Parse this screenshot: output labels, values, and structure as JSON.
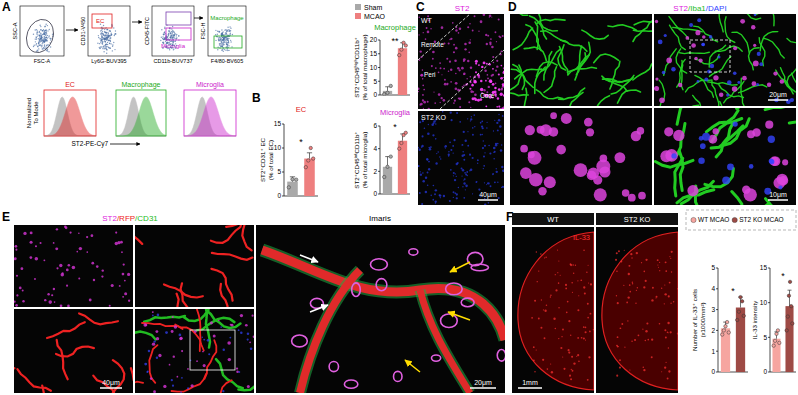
{
  "chart_data": [
    {
      "type": "bar",
      "title": "EC",
      "y_label": [
        "ST2⁺CD31⁺ EC",
        "(% of total EC)"
      ],
      "categories": [
        null
      ],
      "ylim": [
        0,
        15
      ],
      "yticks": [
        0,
        5,
        10,
        15
      ],
      "annotation": "*",
      "series": [
        {
          "color": "#a9a9a9",
          "values": [
            3.0
          ],
          "errors": [
            1.0
          ],
          "points": [
            1.8,
            3.5,
            3.4
          ]
        },
        {
          "color": "#ee7f7f",
          "values": [
            7.8
          ],
          "errors": [
            1.2
          ],
          "points": [
            6.0,
            7.4,
            10.0,
            7.8
          ]
        }
      ]
    },
    {
      "type": "bar",
      "title": "Macrophage",
      "y_label": [
        "ST2⁺CD45ʰⁱᵍʰCD11b⁺",
        "(% of total macrophage)"
      ],
      "categories": [
        null
      ],
      "ylim": [
        0,
        20
      ],
      "yticks": [
        0,
        5,
        10,
        15,
        20
      ],
      "annotation": "**",
      "legend": "top",
      "series": [
        {
          "name": "Sham",
          "color": "#a9a9a9",
          "values": [
            1.5
          ],
          "errors": [
            1.5
          ],
          "points": [
            0.3,
            0.8,
            3.3
          ]
        },
        {
          "name": "MCAO",
          "color": "#ee7f7f",
          "values": [
            17.0
          ],
          "errors": [
            2.0
          ],
          "points": [
            14.5,
            16.5,
            19.0,
            18.0
          ]
        }
      ]
    },
    {
      "type": "bar",
      "title": "Microglia",
      "y_label": [
        "ST2⁺CD45ⁱⁿᵗCD11b⁺",
        "(% of total microglia)"
      ],
      "categories": [
        null
      ],
      "ylim": [
        0,
        6
      ],
      "yticks": [
        0,
        2,
        4,
        6
      ],
      "annotation": "*",
      "series": [
        {
          "color": "#a9a9a9",
          "values": [
            2.4
          ],
          "errors": [
            0.9
          ],
          "points": [
            1.5,
            2.4,
            3.3
          ]
        },
        {
          "color": "#ee7f7f",
          "values": [
            4.7
          ],
          "errors": [
            0.6
          ],
          "points": [
            4.0,
            4.5,
            5.2,
            5.4
          ]
        }
      ]
    },
    {
      "type": "bar",
      "y_label": [
        "Number of IL-33⁺ cells",
        "(x1000/mm²)"
      ],
      "categories": [
        null
      ],
      "ylim": [
        0,
        5
      ],
      "yticks": [
        0,
        1,
        2,
        3,
        4,
        5
      ],
      "annotation": "*",
      "legend": "top",
      "series": [
        {
          "name": "WT MCAO",
          "color": "#f6a5a0",
          "values": [
            2.1
          ],
          "errors": [
            0.3
          ],
          "points": [
            1.8,
            2.0,
            2.2,
            2.4,
            1.9
          ]
        },
        {
          "name": "ST2 KO MCAO",
          "color": "#9e4a45",
          "values": [
            3.1
          ],
          "errors": [
            0.5
          ],
          "points": [
            2.5,
            2.9,
            3.6,
            3.4,
            2.7
          ]
        }
      ]
    },
    {
      "type": "bar",
      "y_label": [
        "IL-33 intensity"
      ],
      "categories": [
        null
      ],
      "ylim": [
        0,
        15
      ],
      "yticks": [
        0,
        5,
        10,
        15
      ],
      "annotation": "*",
      "series": [
        {
          "color": "#f6a5a0",
          "values": [
            4.8
          ],
          "errors": [
            1.0
          ],
          "points": [
            3.8,
            4.5,
            5.5,
            6.0,
            4.2
          ]
        },
        {
          "color": "#9e4a45",
          "values": [
            9.5
          ],
          "errors": [
            2.3
          ],
          "points": [
            6.0,
            8.0,
            11.0,
            13.0,
            9.5,
            7.0
          ]
        }
      ]
    }
  ],
  "figure": {
    "A": {
      "label": "A",
      "gates": [
        {
          "x": "FSC-A",
          "y": "SSC-A"
        },
        {
          "x": "Ly6G-BUV395",
          "y": "CD31-V450",
          "gate": "EC"
        },
        {
          "x": "CD11b-BUV737",
          "y": "CD45-FITC",
          "gate": "Microglia"
        },
        {
          "x": "F4/80-BV605",
          "y": "FSC-H",
          "gate": "Macrophage"
        }
      ],
      "histograms": [
        "EC",
        "Macrophage",
        "Microglia"
      ],
      "hist_y": [
        "Normalized",
        "To Mode"
      ],
      "hist_x": "ST2-PE-Cy7"
    },
    "B": {
      "label": "B"
    },
    "C": {
      "label": "C",
      "stain": "ST2",
      "top": "WT",
      "bottom": "ST2 KO",
      "regions": [
        "Remote",
        "Peri",
        "Core"
      ],
      "scale": "40μm"
    },
    "D": {
      "label": "D",
      "stain": [
        "ST2",
        "/Iba1",
        "/DAPI"
      ],
      "scale_top": "20μm",
      "scale_bottom": "10μm"
    },
    "E": {
      "label": "E",
      "stain": [
        "ST2",
        "/RFP",
        "/CD31"
      ],
      "scale_left": "40μm",
      "title_right": "Imaris",
      "scale_right": "20μm"
    },
    "F": {
      "label": "F",
      "left": "WT",
      "right": "ST2 KO",
      "stain": "IL-33",
      "scale": "1mm"
    }
  }
}
